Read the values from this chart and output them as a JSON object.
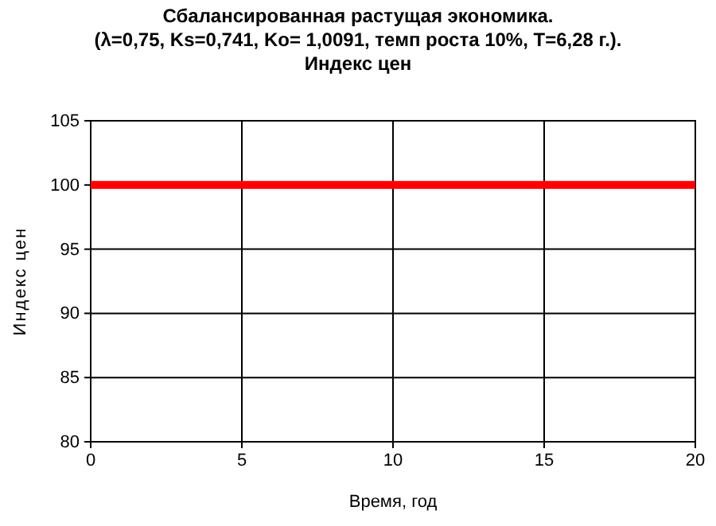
{
  "chart_data": {
    "type": "line",
    "title": "Сбалансированная растущая экономика.",
    "subtitle": "(λ=0,75, Ks=0,741, Ko= 1,0091, темп роста 10%, T=6,28 г.).",
    "annotations": [
      "Индекс цен"
    ],
    "xlabel": "Время, год",
    "ylabel": "Индекс цен",
    "x": [
      0,
      20
    ],
    "series": [
      {
        "color": "#ff0000",
        "values": [
          100,
          100
        ]
      }
    ],
    "xlim": [
      0,
      20
    ],
    "xticks": [
      0,
      5,
      10,
      15,
      20
    ],
    "ylim": [
      80,
      105
    ],
    "yticks": [
      80,
      85,
      90,
      95,
      100,
      105
    ],
    "grid": true,
    "marker": "none",
    "line_style": "solid"
  }
}
